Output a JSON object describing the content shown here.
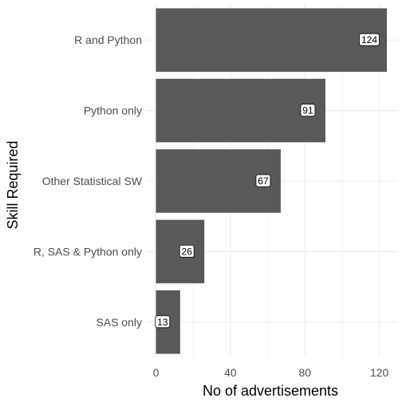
{
  "chart_data": {
    "type": "bar",
    "orientation": "horizontal",
    "title": "",
    "xlabel": "No of  advertisements",
    "ylabel": "Skill Required",
    "categories": [
      "R and Python",
      "Python only",
      "Other Statistical SW",
      "R, SAS & Python only",
      "SAS only"
    ],
    "values": [
      124,
      91,
      67,
      26,
      13
    ],
    "data_labels": [
      "124",
      "91",
      "67",
      "26",
      "13"
    ],
    "xlim": [
      0,
      130
    ],
    "xticks": [
      0,
      40,
      80,
      120
    ],
    "xtick_labels": [
      "0",
      "40",
      "80",
      "120"
    ],
    "grid": true,
    "legend": "none",
    "colors": {
      "bar": "#595959",
      "grid": "#ebebeb",
      "label_bg": "#ffffff"
    }
  }
}
